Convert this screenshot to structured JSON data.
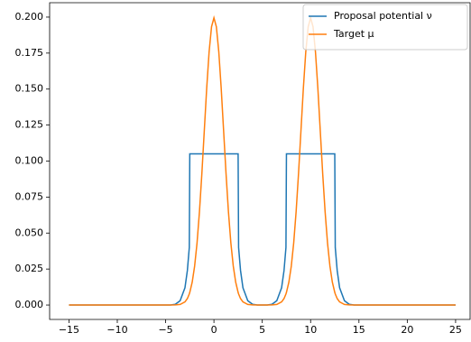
{
  "chart_data": {
    "type": "line",
    "x": [
      -15,
      -5,
      -4.5,
      -4,
      -3.5,
      -3,
      -2.75,
      -2.55,
      -2.5,
      -2.25,
      -2,
      -1.75,
      -1.5,
      -1.25,
      -1,
      -0.75,
      -0.5,
      -0.25,
      0,
      0.25,
      0.5,
      0.75,
      1,
      1.25,
      1.5,
      1.75,
      2,
      2.25,
      2.5,
      2.55,
      2.75,
      3,
      3.5,
      4,
      4.5,
      5,
      5.5,
      6,
      6.5,
      7,
      7.25,
      7.45,
      7.5,
      7.75,
      8,
      8.25,
      8.5,
      8.75,
      9,
      9.25,
      9.5,
      9.75,
      10,
      10.25,
      10.5,
      10.75,
      11,
      11.25,
      11.5,
      11.75,
      12,
      12.25,
      12.5,
      12.55,
      12.75,
      13,
      13.5,
      14,
      14.5,
      15,
      25
    ],
    "series": [
      {
        "name": "Proposal potential ν",
        "color": "#1f77b4",
        "values": [
          0,
          0,
          0,
          0.0005,
          0.003,
          0.012,
          0.024,
          0.04,
          0.105,
          0.105,
          0.105,
          0.105,
          0.105,
          0.105,
          0.105,
          0.105,
          0.105,
          0.105,
          0.105,
          0.105,
          0.105,
          0.105,
          0.105,
          0.105,
          0.105,
          0.105,
          0.105,
          0.105,
          0.105,
          0.04,
          0.024,
          0.012,
          0.003,
          0.0005,
          0,
          0,
          0,
          0.0005,
          0.003,
          0.012,
          0.024,
          0.04,
          0.105,
          0.105,
          0.105,
          0.105,
          0.105,
          0.105,
          0.105,
          0.105,
          0.105,
          0.105,
          0.105,
          0.105,
          0.105,
          0.105,
          0.105,
          0.105,
          0.105,
          0.105,
          0.105,
          0.105,
          0.105,
          0.04,
          0.024,
          0.012,
          0.003,
          0.0005,
          0,
          0,
          0
        ]
      },
      {
        "name": "Target μ",
        "color": "#ff7f0e",
        "values": [
          0,
          0,
          0,
          0.0001,
          0.0004,
          0.0022,
          0.0045,
          0.0077,
          0.0088,
          0.0159,
          0.027,
          0.0431,
          0.0648,
          0.0913,
          0.121,
          0.1506,
          0.176,
          0.1933,
          0.1995,
          0.1933,
          0.176,
          0.1506,
          0.121,
          0.0913,
          0.0648,
          0.0431,
          0.027,
          0.0159,
          0.0088,
          0.0077,
          0.0045,
          0.0022,
          0.0004,
          0.0001,
          0,
          0,
          0,
          0.0001,
          0.0004,
          0.0022,
          0.0045,
          0.0077,
          0.0088,
          0.0159,
          0.027,
          0.0431,
          0.0648,
          0.0913,
          0.121,
          0.1506,
          0.176,
          0.1933,
          0.1995,
          0.1933,
          0.176,
          0.1506,
          0.121,
          0.0913,
          0.0648,
          0.0431,
          0.027,
          0.0159,
          0.0088,
          0.0077,
          0.0045,
          0.0022,
          0.0004,
          0.0001,
          0,
          0,
          0
        ]
      }
    ],
    "xlim": [
      -17,
      26.5
    ],
    "xticks": [
      {
        "value": -15,
        "label": "−15"
      },
      {
        "value": -10,
        "label": "−10"
      },
      {
        "value": -5,
        "label": "−5"
      },
      0,
      5,
      10,
      15,
      20,
      25
    ],
    "ylim": [
      -0.01,
      0.21
    ],
    "yticks": [
      {
        "value": 0,
        "label": "0.000"
      },
      {
        "value": 0.025,
        "label": "0.025"
      },
      {
        "value": 0.05,
        "label": "0.050"
      },
      {
        "value": 0.075,
        "label": "0.075"
      },
      {
        "value": 0.1,
        "label": "0.100"
      },
      {
        "value": 0.125,
        "label": "0.125"
      },
      {
        "value": 0.15,
        "label": "0.150"
      },
      {
        "value": 0.175,
        "label": "0.175"
      },
      {
        "value": 0.2,
        "label": "0.200"
      }
    ],
    "legend": "upper right"
  }
}
